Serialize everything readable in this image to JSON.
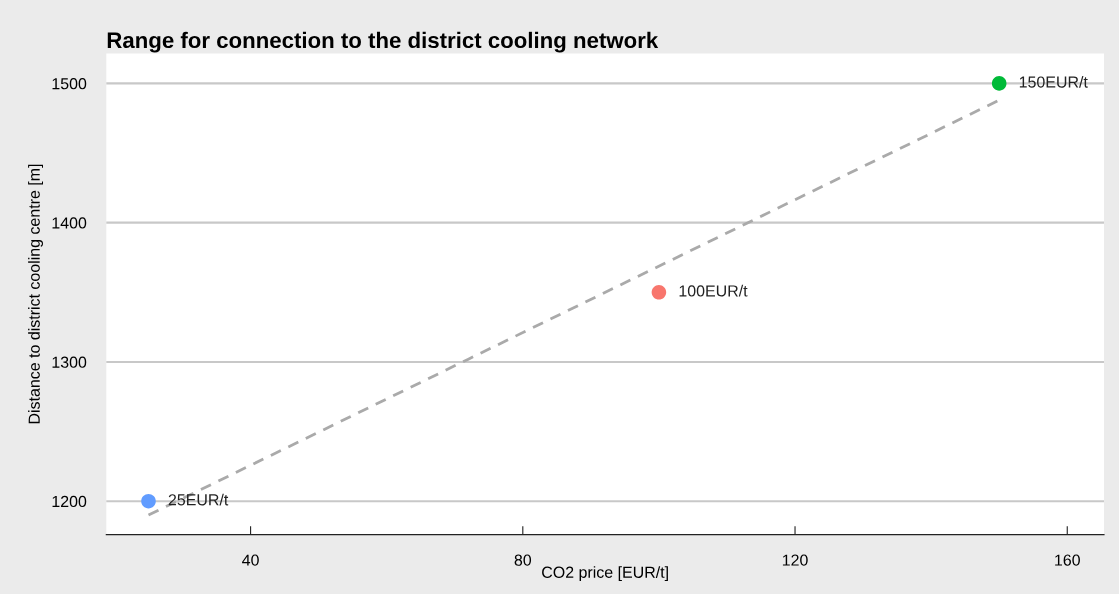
{
  "chart_data": {
    "type": "scatter",
    "title": "Range for connection to the district cooling network",
    "xlabel": "CO2 price [EUR/t]",
    "ylabel": "Distance to district cooling centre [m]",
    "series": [
      {
        "x": [
          25,
          100,
          150
        ],
        "values": [
          1200,
          1350,
          1500
        ],
        "colors": [
          "#619cff",
          "#f8766d",
          "#00ba38"
        ],
        "marker": "circle"
      },
      {
        "type": "line",
        "x": [
          25,
          72,
          150
        ],
        "values": [
          1190,
          1302,
          1488
        ],
        "color": "#aaaaaa",
        "line_style": "dashed",
        "marker": "none"
      }
    ],
    "xlim": [
      18.8,
      165.4
    ],
    "ylim": [
      1176,
      1521.5
    ],
    "xticks": [
      40,
      80,
      120,
      160
    ],
    "yticks": [
      1200,
      1300,
      1400,
      1500
    ],
    "grid": "y",
    "annotations": [
      {
        "text": "25EUR/t",
        "x": 25,
        "y": 1200
      },
      {
        "text": "100EUR/t",
        "x": 100,
        "y": 1350
      },
      {
        "text": "150EUR/t",
        "x": 150,
        "y": 1500
      }
    ]
  }
}
